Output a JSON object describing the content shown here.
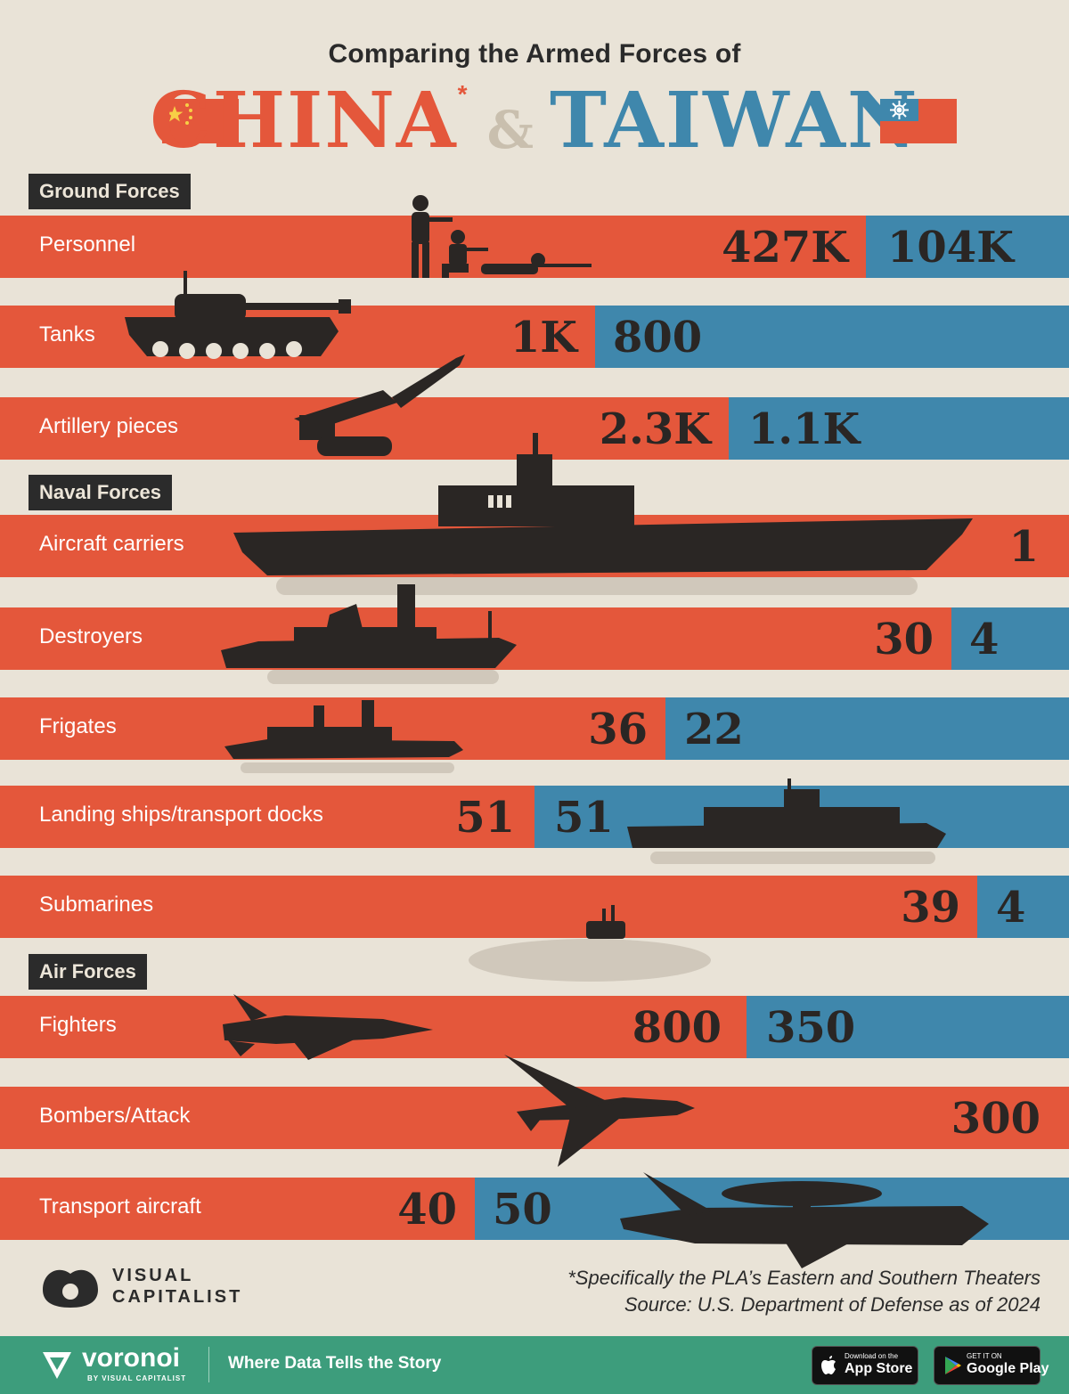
{
  "header": {
    "kicker": "Comparing the Armed Forces of",
    "china": "CHINA",
    "china_mark": "*",
    "ampersand": "&",
    "taiwan": "TAIWAN"
  },
  "colors": {
    "china": "#e4573b",
    "taiwan": "#3f87ac",
    "background": "#e9e3d7",
    "ink": "#2b2b2b"
  },
  "chart_data": {
    "type": "bar",
    "orientation": "horizontal",
    "stacked": true,
    "series": [
      {
        "name": "CHINA",
        "color": "#e4573b"
      },
      {
        "name": "TAIWAN",
        "color": "#3f87ac"
      }
    ],
    "sections": [
      {
        "title": "Ground Forces",
        "rows": [
          {
            "label": "Personnel",
            "china": 427000,
            "taiwan": 104000,
            "china_label": "427K",
            "taiwan_label": "104K"
          },
          {
            "label": "Tanks",
            "china": 1000,
            "taiwan": 800,
            "china_label": "1K",
            "taiwan_label": "800"
          },
          {
            "label": "Artillery pieces",
            "china": 2300,
            "taiwan": 1100,
            "china_label": "2.3K",
            "taiwan_label": "1.1K"
          }
        ]
      },
      {
        "title": "Naval Forces",
        "rows": [
          {
            "label": "Aircraft carriers",
            "china": 1,
            "taiwan": 0,
            "china_label": "1",
            "taiwan_label": ""
          },
          {
            "label": "Destroyers",
            "china": 30,
            "taiwan": 4,
            "china_label": "30",
            "taiwan_label": "4"
          },
          {
            "label": "Frigates",
            "china": 36,
            "taiwan": 22,
            "china_label": "36",
            "taiwan_label": "22"
          },
          {
            "label": "Landing ships/transport docks",
            "china": 51,
            "taiwan": 51,
            "china_label": "51",
            "taiwan_label": "51"
          },
          {
            "label": "Submarines",
            "china": 39,
            "taiwan": 4,
            "china_label": "39",
            "taiwan_label": "4"
          }
        ]
      },
      {
        "title": "Air Forces",
        "rows": [
          {
            "label": "Fighters",
            "china": 800,
            "taiwan": 350,
            "china_label": "800",
            "taiwan_label": "350"
          },
          {
            "label": "Bombers/Attack",
            "china": 300,
            "taiwan": 0,
            "china_label": "300",
            "taiwan_label": ""
          },
          {
            "label": "Transport aircraft",
            "china": 40,
            "taiwan": 50,
            "china_label": "40",
            "taiwan_label": "50"
          }
        ]
      }
    ]
  },
  "footnote": {
    "note": "*Specifically the PLA’s Eastern and Southern Theaters",
    "source": "Source: U.S. Department of Defense as of 2024"
  },
  "branding": {
    "vc_line1": "VISUAL",
    "vc_line2": "CAPITALIST",
    "voronoi": "voronoi",
    "voronoi_sub": "BY VISUAL CAPITALIST",
    "tagline": "Where Data Tells the Story",
    "appstore_small": "Download on the",
    "appstore_big": "App Store",
    "googleplay_small": "GET IT ON",
    "googleplay_big": "Google Play"
  },
  "icons": [
    "china-flag-icon",
    "taiwan-flag-icon",
    "soldiers-icon",
    "tank-icon",
    "missile-launcher-icon",
    "aircraft-carrier-icon",
    "destroyer-icon",
    "frigate-icon",
    "landing-ship-icon",
    "submarine-icon",
    "fighter-jet-icon",
    "bomber-icon",
    "awacs-plane-icon",
    "apple-icon",
    "google-play-icon"
  ]
}
